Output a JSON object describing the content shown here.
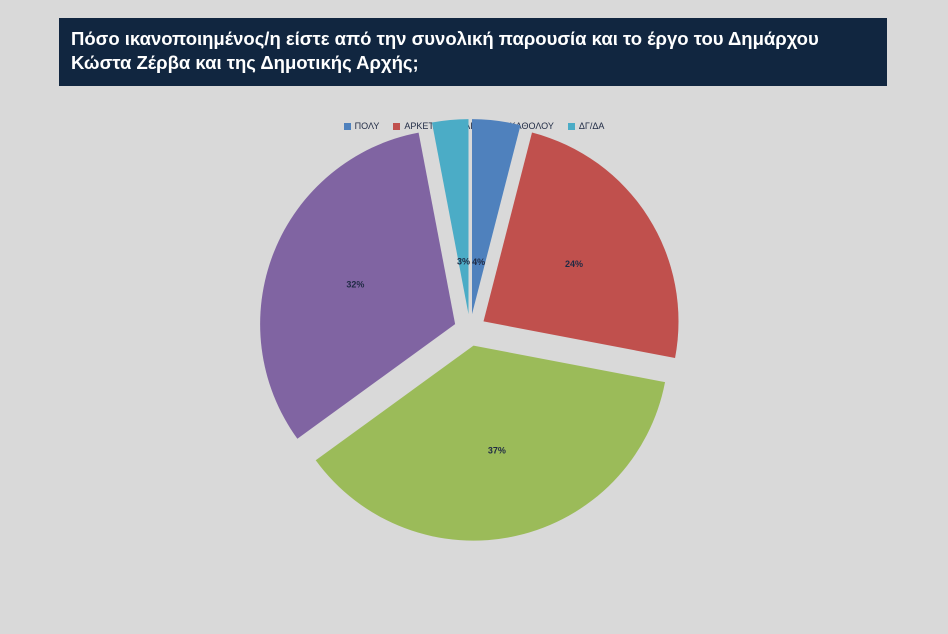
{
  "header": {
    "title": "Πόσο ικανοποιημένος/η είστε από την συνολική παρουσία και το έργο του Δημάρχου Κώστα Ζέρβα και της Δημοτικής Αρχής;"
  },
  "chart_data": {
    "type": "pie",
    "title": "Πόσο ικανοποιημένος/η είστε από την συνολική παρουσία και το έργο του Δημάρχου Κώστα Ζέρβα και της Δημοτικής Αρχής;",
    "exploded": true,
    "legend_position": "top",
    "categories": [
      "ΠΟΛΥ",
      "ΑΡΚΕΤΑ",
      "ΛΙΓΟ",
      "ΚΑΘΟΛΟΥ",
      "ΔΓ/ΔΑ"
    ],
    "values": [
      4,
      24,
      37,
      32,
      3
    ],
    "labels": [
      "4%",
      "24%",
      "37%",
      "32%",
      "3%"
    ],
    "colors": [
      "#4f81bd",
      "#c0504d",
      "#9bbb59",
      "#8064a2",
      "#4bacc6"
    ]
  }
}
